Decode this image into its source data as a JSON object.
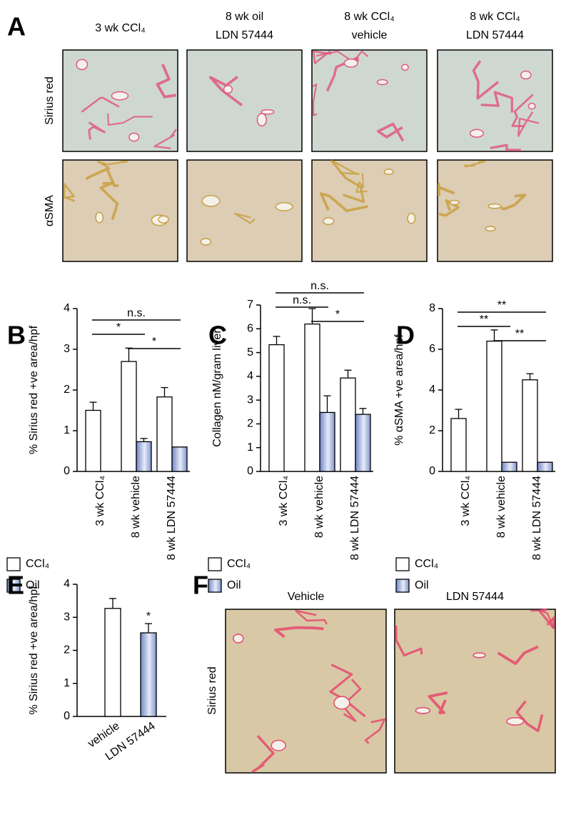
{
  "panel_a": {
    "label": "A",
    "columns": [
      [
        "3 wk CCl₄"
      ],
      [
        "8 wk oil",
        "LDN 57444"
      ],
      [
        "8 wk CCl₄",
        "vehicle"
      ],
      [
        "8 wk CCl₄",
        "LDN 57444"
      ]
    ],
    "rows": [
      "Sirius red",
      "αSMA"
    ]
  },
  "panel_f": {
    "label": "F",
    "columns": [
      "Vehicle",
      "LDN 57444"
    ],
    "rows": [
      "Sirius red"
    ]
  },
  "chart_data": [
    {
      "type": "bar",
      "label": "B",
      "y_label": "% Sirius red +ve area/hpf",
      "categories": [
        "3 wk CCl₄",
        "8 wk vehicle",
        "8 wk LDN 57444"
      ],
      "series": [
        {
          "name": "CCl₄",
          "color": "#ffffff",
          "values": [
            1.5,
            2.7,
            1.83
          ],
          "errors": [
            0.2,
            0.33,
            0.23
          ]
        },
        {
          "name": "Oil",
          "color": "#9aaad8",
          "values": [
            null,
            0.73,
            0.6
          ],
          "errors": [
            null,
            0.08,
            null
          ]
        }
      ],
      "ylim": [
        0,
        4
      ],
      "yticks": [
        0,
        1,
        2,
        3,
        4
      ],
      "significance": [
        {
          "label": "n.s.",
          "from": 0,
          "to": 2
        },
        {
          "label": "*",
          "from": 0,
          "to": 1
        },
        {
          "label": "*",
          "from": 1,
          "to": 2
        }
      ]
    },
    {
      "type": "bar",
      "label": "C",
      "y_label": "Collagen nM/gram liver",
      "categories": [
        "3 wk CCl₄",
        "8 wk vehicle",
        "8 wk LDN 57444"
      ],
      "series": [
        {
          "name": "CCl₄",
          "color": "#ffffff",
          "values": [
            5.33,
            6.2,
            3.93
          ],
          "errors": [
            0.35,
            0.65,
            0.33
          ]
        },
        {
          "name": "Oil",
          "color": "#9aaad8",
          "values": [
            null,
            2.48,
            2.4
          ],
          "errors": [
            null,
            0.7,
            0.25
          ]
        }
      ],
      "ylim": [
        0,
        7
      ],
      "yticks": [
        0,
        1,
        2,
        3,
        4,
        5,
        6,
        7
      ],
      "significance": [
        {
          "label": "n.s.",
          "from": 0,
          "to": 2
        },
        {
          "label": "n.s.",
          "from": 0,
          "to": 1
        },
        {
          "label": "*",
          "from": 1,
          "to": 2
        }
      ]
    },
    {
      "type": "bar",
      "label": "D",
      "y_label": "% αSMA +ve area/hpf",
      "categories": [
        "3 wk CCl₄",
        "8 wk vehicle",
        "8 wk LDN 57444"
      ],
      "series": [
        {
          "name": "CCl₄",
          "color": "#ffffff",
          "values": [
            2.6,
            6.4,
            4.5
          ],
          "errors": [
            0.45,
            0.55,
            0.3
          ]
        },
        {
          "name": "Oil",
          "color": "#9aaad8",
          "values": [
            null,
            0.45,
            0.45
          ],
          "errors": [
            null,
            null,
            null
          ]
        }
      ],
      "ylim": [
        0,
        8
      ],
      "yticks": [
        0,
        2,
        4,
        6,
        8
      ],
      "significance": [
        {
          "label": "**",
          "from": 0,
          "to": 2
        },
        {
          "label": "**",
          "from": 0,
          "to": 1
        },
        {
          "label": "**",
          "from": 1,
          "to": 2
        }
      ]
    },
    {
      "type": "bar",
      "label": "E",
      "y_label": "% Sirius red +ve area/hpf",
      "categories": [
        "vehicle",
        "LDN 57444"
      ],
      "values": [
        3.27,
        2.53
      ],
      "errors": [
        0.3,
        0.28
      ],
      "colors": [
        "#ffffff",
        "#9aaad8"
      ],
      "annotations": [
        {
          "text": "*",
          "category": 1
        }
      ],
      "ylim": [
        0,
        4
      ],
      "yticks": [
        0,
        1,
        2,
        3,
        4
      ]
    }
  ]
}
